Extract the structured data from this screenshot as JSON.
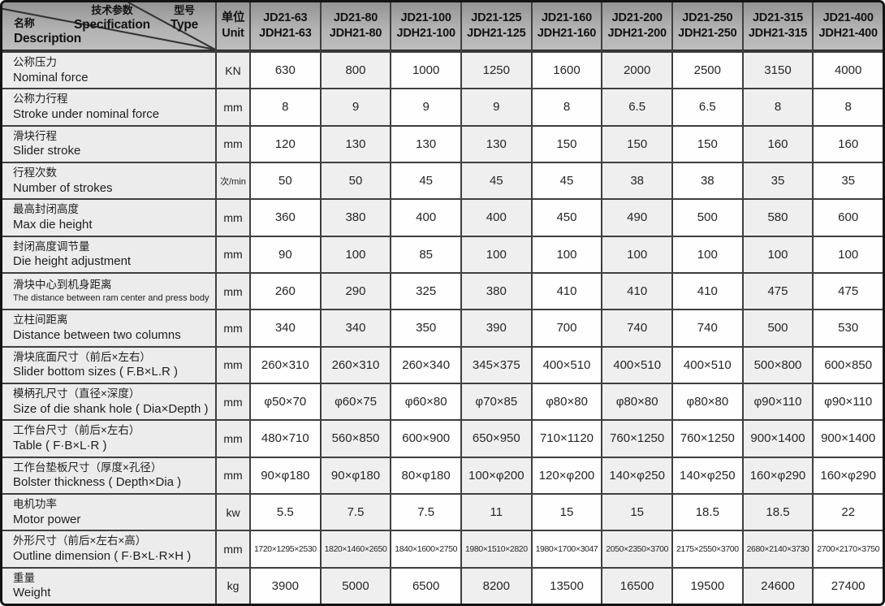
{
  "table": {
    "corner": {
      "spec_zh": "技术参数",
      "spec_en": "Specification",
      "type_zh": "型号",
      "type_en": "Type",
      "desc_zh": "名称",
      "desc_en": "Description"
    },
    "unit_header": {
      "zh": "单位",
      "en": "Unit"
    },
    "models": [
      {
        "line1": "JD21-63",
        "line2": "JDH21-63"
      },
      {
        "line1": "JD21-80",
        "line2": "JDH21-80"
      },
      {
        "line1": "JD21-100",
        "line2": "JDH21-100"
      },
      {
        "line1": "JD21-125",
        "line2": "JDH21-125"
      },
      {
        "line1": "JD21-160",
        "line2": "JDH21-160"
      },
      {
        "line1": "JD21-200",
        "line2": "JDH21-200"
      },
      {
        "line1": "JD21-250",
        "line2": "JDH21-250"
      },
      {
        "line1": "JD21-315",
        "line2": "JDH21-315"
      },
      {
        "line1": "JD21-400",
        "line2": "JDH21-400"
      }
    ],
    "rows": [
      {
        "zh": "公称压力",
        "en": "Nominal force",
        "unit": "KN",
        "values": [
          "630",
          "800",
          "1000",
          "1250",
          "1600",
          "2000",
          "2500",
          "3150",
          "4000"
        ]
      },
      {
        "zh": "公称力行程",
        "en": "Stroke under nominal force",
        "unit": "mm",
        "values": [
          "8",
          "9",
          "9",
          "9",
          "8",
          "6.5",
          "6.5",
          "8",
          "8"
        ]
      },
      {
        "zh": "滑块行程",
        "en": "Slider stroke",
        "unit": "mm",
        "values": [
          "120",
          "130",
          "130",
          "130",
          "150",
          "150",
          "150",
          "160",
          "160"
        ]
      },
      {
        "zh": "行程次数",
        "en": "Number of strokes",
        "unit": "次/min",
        "values": [
          "50",
          "50",
          "45",
          "45",
          "45",
          "38",
          "38",
          "35",
          "35"
        ]
      },
      {
        "zh": "最高封闭高度",
        "en": "Max die height",
        "unit": "mm",
        "values": [
          "360",
          "380",
          "400",
          "400",
          "450",
          "490",
          "500",
          "580",
          "600"
        ]
      },
      {
        "zh": "封闭高度调节量",
        "en": "Die height adjustment",
        "unit": "mm",
        "values": [
          "90",
          "100",
          "85",
          "100",
          "100",
          "100",
          "100",
          "100",
          "100"
        ]
      },
      {
        "zh": "滑块中心到机身距离",
        "en": "The distance between ram center and press body",
        "unit": "mm",
        "en_small": true,
        "values": [
          "260",
          "290",
          "325",
          "380",
          "410",
          "410",
          "410",
          "475",
          "475"
        ]
      },
      {
        "zh": "立柱间距离",
        "en": "Distance between two columns",
        "unit": "mm",
        "values": [
          "340",
          "340",
          "350",
          "390",
          "700",
          "740",
          "740",
          "500",
          "530"
        ]
      },
      {
        "zh": "滑块底面尺寸（前后×左右）",
        "en": "Slider bottom sizes ( F.B×L.R )",
        "unit": "mm",
        "values": [
          "260×310",
          "260×310",
          "260×340",
          "345×375",
          "400×510",
          "400×510",
          "400×510",
          "500×800",
          "600×850"
        ]
      },
      {
        "zh": "模柄孔尺寸（直径×深度）",
        "en": "Size of die shank hole ( Dia×Depth )",
        "unit": "mm",
        "values": [
          "φ50×70",
          "φ60×75",
          "φ60×80",
          "φ70×85",
          "φ80×80",
          "φ80×80",
          "φ80×80",
          "φ90×110",
          "φ90×110"
        ]
      },
      {
        "zh": "工作台尺寸（前后×左右）",
        "en": "Table ( F·B×L·R )",
        "unit": "mm",
        "values": [
          "480×710",
          "560×850",
          "600×900",
          "650×950",
          "710×1120",
          "760×1250",
          "760×1250",
          "900×1400",
          "900×1400"
        ]
      },
      {
        "zh": "工作台垫板尺寸（厚度×孔径）",
        "en": "Bolster thickness ( Depth×Dia )",
        "unit": "mm",
        "values": [
          "90×φ180",
          "90×φ180",
          "80×φ180",
          "100×φ200",
          "120×φ200",
          "140×φ250",
          "140×φ250",
          "160×φ290",
          "160×φ290"
        ]
      },
      {
        "zh": "电机功率",
        "en": "Motor power",
        "unit": "kw",
        "values": [
          "5.5",
          "7.5",
          "7.5",
          "11",
          "15",
          "15",
          "18.5",
          "18.5",
          "22"
        ]
      },
      {
        "zh": "外形尺寸（前后×左右×高）",
        "en": "Outline dimension ( F·B×L·R×H )",
        "unit": "mm",
        "values_small": true,
        "values": [
          "1720×1295×2530",
          "1820×1460×2650",
          "1840×1600×2750",
          "1980×1510×2820",
          "1980×1700×3047",
          "2050×2350×3700",
          "2175×2550×3700",
          "2680×2140×3730",
          "2700×2170×3750"
        ]
      },
      {
        "zh": "重量",
        "en": "Weight",
        "unit": "kg",
        "values": [
          "3900",
          "5000",
          "6500",
          "8200",
          "13500",
          "16500",
          "19500",
          "24600",
          "27400"
        ]
      }
    ],
    "colors": {
      "header_top": "#949494",
      "header_bottom": "#bdbdbd",
      "gridline": "#3f3f3f",
      "label_bg": "#ececec",
      "stripe_bg": "#efefef",
      "cell_bg": "#fefefe",
      "text": "#262626",
      "outer_border": "#141414"
    }
  }
}
